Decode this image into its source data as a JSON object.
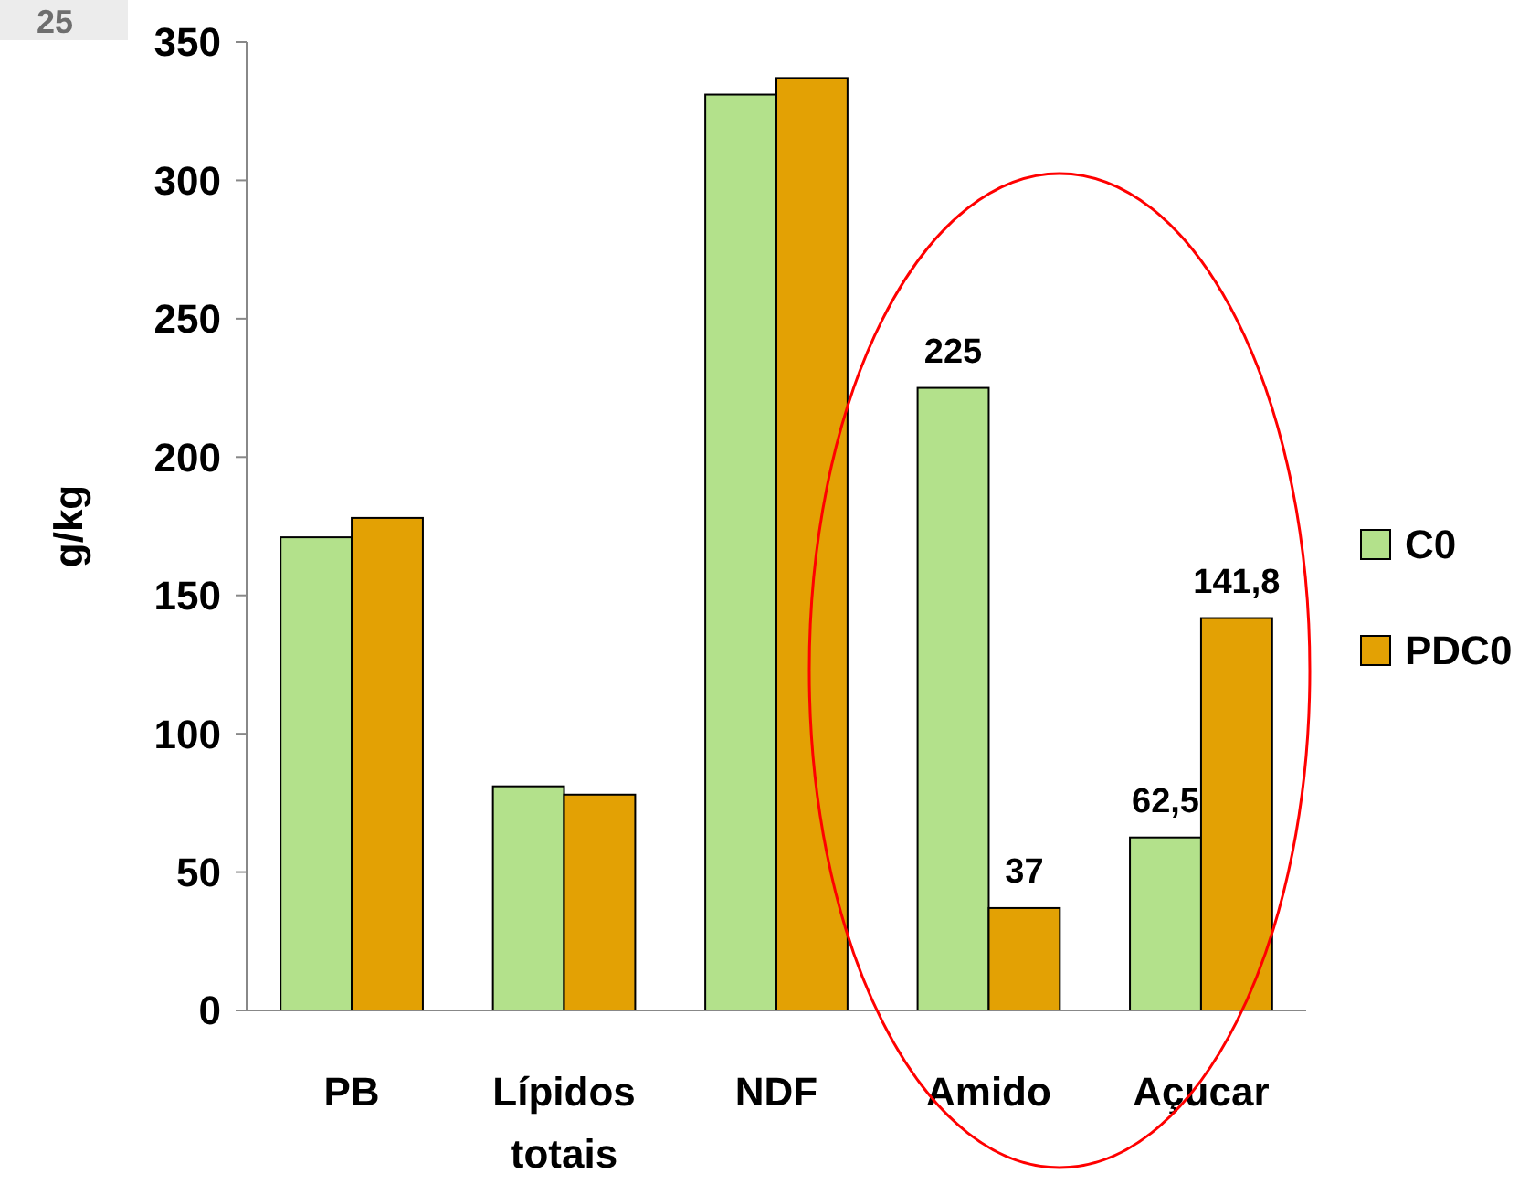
{
  "chart_data": {
    "type": "bar",
    "ylabel": "g/kg",
    "categories": [
      "PB",
      "Lípidos totais",
      "NDF",
      "Amido",
      "Açucar"
    ],
    "series": [
      {
        "name": "C0",
        "color": "#b3e18b",
        "values": [
          171,
          81,
          331,
          225,
          62.5
        ],
        "value_labels": [
          null,
          null,
          null,
          "225",
          "62,5"
        ]
      },
      {
        "name": "PDC0",
        "color": "#e3a104",
        "values": [
          178,
          78,
          337,
          37,
          141.8
        ],
        "value_labels": [
          null,
          null,
          null,
          "37",
          "141,8"
        ]
      }
    ],
    "ylim": [
      0,
      350
    ],
    "yticks": [
      0,
      50,
      100,
      150,
      200,
      250,
      300,
      350
    ],
    "legend": "right",
    "grid": false,
    "annotations": [
      "25"
    ]
  }
}
